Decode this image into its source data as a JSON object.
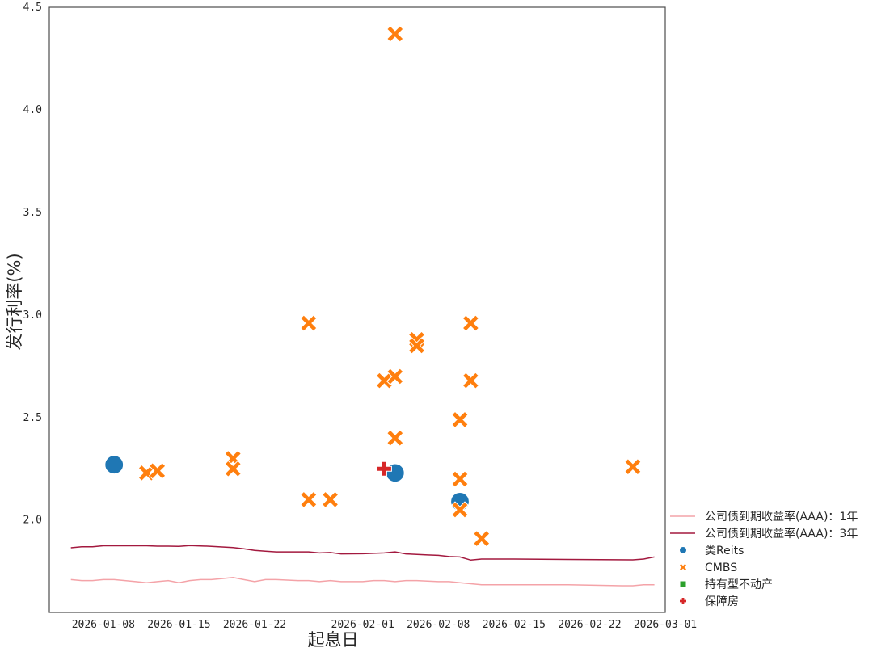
{
  "chart_data": {
    "type": "scatter",
    "xlabel": "起息日",
    "ylabel": "发行利率(%)",
    "xlim": [
      "2026-01-03",
      "2026-03-01"
    ],
    "ylim": [
      1.55,
      4.5
    ],
    "grid": false,
    "legend_position": "lower-right, outside plot",
    "x_ticks": [
      "2026-01-08",
      "2026-01-15",
      "2026-01-22",
      "2026-02-01",
      "2026-02-08",
      "2026-02-15",
      "2026-02-22",
      "2026-03-01"
    ],
    "y_ticks": [
      2.0,
      2.5,
      3.0,
      3.5,
      4.0,
      4.5
    ],
    "y_tick_labels": [
      "2.0",
      "2.5",
      "3.0",
      "3.5",
      "4.0",
      "4.5"
    ],
    "series": [
      {
        "name": "公司债到期收益率(AAA)：1年",
        "kind": "line",
        "color": "#f4a3a8",
        "points": [
          [
            "2026-01-05",
            1.71
          ],
          [
            "2026-01-06",
            1.705
          ],
          [
            "2026-01-07",
            1.705
          ],
          [
            "2026-01-08",
            1.71
          ],
          [
            "2026-01-09",
            1.71
          ],
          [
            "2026-01-10",
            1.705
          ],
          [
            "2026-01-11",
            1.7
          ],
          [
            "2026-01-12",
            1.695
          ],
          [
            "2026-01-13",
            1.7
          ],
          [
            "2026-01-14",
            1.705
          ],
          [
            "2026-01-15",
            1.695
          ],
          [
            "2026-01-16",
            1.705
          ],
          [
            "2026-01-17",
            1.71
          ],
          [
            "2026-01-18",
            1.71
          ],
          [
            "2026-01-19",
            1.715
          ],
          [
            "2026-01-20",
            1.72
          ],
          [
            "2026-01-21",
            1.71
          ],
          [
            "2026-01-22",
            1.7
          ],
          [
            "2026-01-23",
            1.71
          ],
          [
            "2026-01-24",
            1.71
          ],
          [
            "2026-01-26",
            1.705
          ],
          [
            "2026-01-27",
            1.705
          ],
          [
            "2026-01-28",
            1.7
          ],
          [
            "2026-01-29",
            1.705
          ],
          [
            "2026-01-30",
            1.7
          ],
          [
            "2026-02-01",
            1.7
          ],
          [
            "2026-02-02",
            1.705
          ],
          [
            "2026-02-03",
            1.705
          ],
          [
            "2026-02-04",
            1.7
          ],
          [
            "2026-02-05",
            1.705
          ],
          [
            "2026-02-06",
            1.705
          ],
          [
            "2026-02-08",
            1.7
          ],
          [
            "2026-02-09",
            1.7
          ],
          [
            "2026-02-10",
            1.695
          ],
          [
            "2026-02-11",
            1.69
          ],
          [
            "2026-02-12",
            1.685
          ],
          [
            "2026-02-15",
            1.685
          ],
          [
            "2026-02-20",
            1.685
          ],
          [
            "2026-02-25",
            1.68
          ],
          [
            "2026-02-26",
            1.68
          ],
          [
            "2026-02-27",
            1.685
          ],
          [
            "2026-02-28",
            1.685
          ]
        ]
      },
      {
        "name": "公司债到期收益率(AAA)：3年",
        "kind": "line",
        "color": "#a3193f",
        "points": [
          [
            "2026-01-05",
            1.865
          ],
          [
            "2026-01-06",
            1.87
          ],
          [
            "2026-01-07",
            1.87
          ],
          [
            "2026-01-08",
            1.875
          ],
          [
            "2026-01-09",
            1.875
          ],
          [
            "2026-01-12",
            1.875
          ],
          [
            "2026-01-13",
            1.873
          ],
          [
            "2026-01-14",
            1.873
          ],
          [
            "2026-01-15",
            1.872
          ],
          [
            "2026-01-16",
            1.876
          ],
          [
            "2026-01-17",
            1.874
          ],
          [
            "2026-01-18",
            1.872
          ],
          [
            "2026-01-20",
            1.866
          ],
          [
            "2026-01-21",
            1.86
          ],
          [
            "2026-01-22",
            1.852
          ],
          [
            "2026-01-23",
            1.848
          ],
          [
            "2026-01-24",
            1.845
          ],
          [
            "2026-01-27",
            1.845
          ],
          [
            "2026-01-28",
            1.84
          ],
          [
            "2026-01-29",
            1.842
          ],
          [
            "2026-01-30",
            1.835
          ],
          [
            "2026-02-01",
            1.836
          ],
          [
            "2026-02-02",
            1.838
          ],
          [
            "2026-02-03",
            1.84
          ],
          [
            "2026-02-04",
            1.845
          ],
          [
            "2026-02-05",
            1.835
          ],
          [
            "2026-02-07",
            1.83
          ],
          [
            "2026-02-08",
            1.828
          ],
          [
            "2026-02-09",
            1.822
          ],
          [
            "2026-02-10",
            1.82
          ],
          [
            "2026-02-11",
            1.805
          ],
          [
            "2026-02-12",
            1.81
          ],
          [
            "2026-02-15",
            1.81
          ],
          [
            "2026-02-20",
            1.808
          ],
          [
            "2026-02-26",
            1.806
          ],
          [
            "2026-02-27",
            1.81
          ],
          [
            "2026-02-28",
            1.82
          ]
        ]
      },
      {
        "name": "类Reits",
        "kind": "scatter",
        "marker": "circle",
        "color": "#1f77b4",
        "points": [
          [
            "2026-01-09",
            2.27
          ],
          [
            "2026-02-04",
            2.23
          ],
          [
            "2026-02-10",
            2.09
          ]
        ]
      },
      {
        "name": "CMBS",
        "kind": "scatter",
        "marker": "x",
        "color": "#ff7f0e",
        "points": [
          [
            "2026-01-12",
            2.23
          ],
          [
            "2026-01-13",
            2.24
          ],
          [
            "2026-01-20",
            2.3
          ],
          [
            "2026-01-20",
            2.25
          ],
          [
            "2026-01-27",
            2.96
          ],
          [
            "2026-01-27",
            2.1
          ],
          [
            "2026-01-29",
            2.1
          ],
          [
            "2026-02-03",
            2.68
          ],
          [
            "2026-02-04",
            4.37
          ],
          [
            "2026-02-04",
            2.7
          ],
          [
            "2026-02-04",
            2.4
          ],
          [
            "2026-02-06",
            2.88
          ],
          [
            "2026-02-06",
            2.85
          ],
          [
            "2026-02-10",
            2.49
          ],
          [
            "2026-02-10",
            2.2
          ],
          [
            "2026-02-10",
            2.05
          ],
          [
            "2026-02-11",
            2.96
          ],
          [
            "2026-02-11",
            2.68
          ],
          [
            "2026-02-12",
            1.91
          ],
          [
            "2026-02-26",
            2.26
          ]
        ]
      },
      {
        "name": "持有型不动产",
        "kind": "scatter",
        "marker": "square",
        "color": "#2ca02c",
        "points": []
      },
      {
        "name": "保障房",
        "kind": "scatter",
        "marker": "plus",
        "color": "#d62728",
        "points": [
          [
            "2026-02-03",
            2.25
          ]
        ]
      }
    ]
  }
}
